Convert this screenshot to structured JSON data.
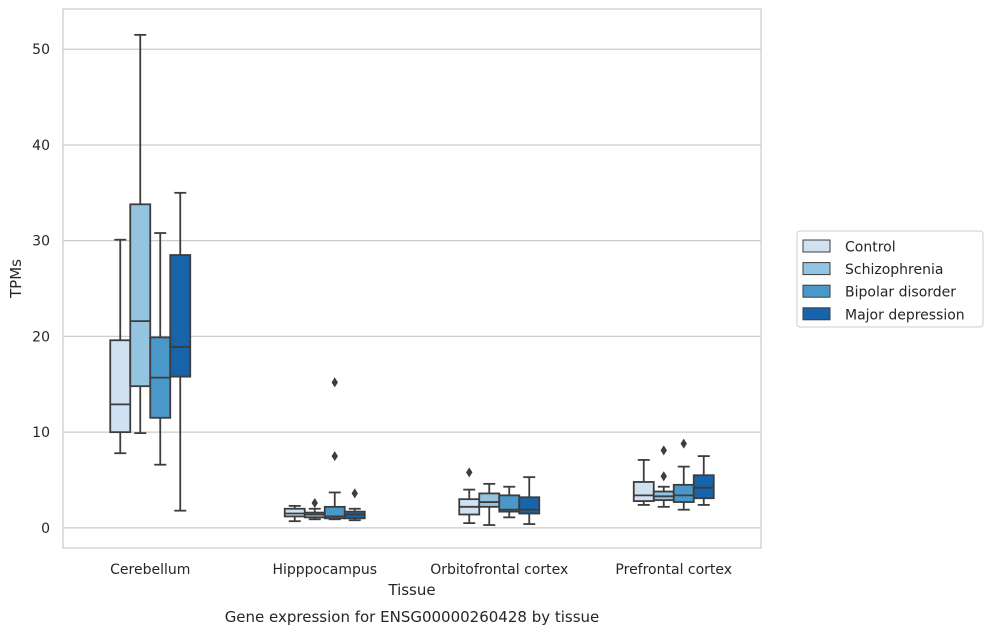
{
  "caption": "Gene expression for ENSG00000260428 by tissue",
  "chart_data": {
    "type": "box",
    "xlabel": "Tissue",
    "ylabel": "TPMs",
    "ylim": [
      -2.1,
      54.2
    ],
    "yticks": [
      0,
      10,
      20,
      30,
      40,
      50
    ],
    "grid": "horizontal",
    "legend_position": "right",
    "categories": [
      "Cerebellum",
      "Hipppocampus",
      "Orbitofrontal cortex",
      "Prefrontal cortex"
    ],
    "series": [
      {
        "name": "Control",
        "color": "#d0e1f2",
        "boxes": [
          {
            "whisker_low": 7.8,
            "q1": 10.0,
            "median": 12.9,
            "q3": 19.6,
            "whisker_high": 30.1,
            "outliers": []
          },
          {
            "whisker_low": 0.7,
            "q1": 1.2,
            "median": 1.5,
            "q3": 2.0,
            "whisker_high": 2.3,
            "outliers": []
          },
          {
            "whisker_low": 0.5,
            "q1": 1.4,
            "median": 2.2,
            "q3": 3.0,
            "whisker_high": 4.0,
            "outliers": [
              5.8
            ]
          },
          {
            "whisker_low": 2.4,
            "q1": 2.8,
            "median": 3.4,
            "q3": 4.8,
            "whisker_high": 7.1,
            "outliers": []
          }
        ]
      },
      {
        "name": "Schizophrenia",
        "color": "#94c4df",
        "boxes": [
          {
            "whisker_low": 9.9,
            "q1": 14.8,
            "median": 21.6,
            "q3": 33.8,
            "whisker_high": 51.5,
            "outliers": []
          },
          {
            "whisker_low": 0.9,
            "q1": 1.1,
            "median": 1.4,
            "q3": 1.6,
            "whisker_high": 2.0,
            "outliers": [
              2.6
            ]
          },
          {
            "whisker_low": 0.3,
            "q1": 2.2,
            "median": 2.7,
            "q3": 3.6,
            "whisker_high": 4.6,
            "outliers": []
          },
          {
            "whisker_low": 2.2,
            "q1": 2.9,
            "median": 3.3,
            "q3": 3.8,
            "whisker_high": 4.3,
            "outliers": [
              8.1,
              5.4
            ]
          }
        ]
      },
      {
        "name": "Bipolar disorder",
        "color": "#4a98c9",
        "boxes": [
          {
            "whisker_low": 6.6,
            "q1": 11.5,
            "median": 15.7,
            "q3": 19.9,
            "whisker_high": 30.8,
            "outliers": []
          },
          {
            "whisker_low": 0.9,
            "q1": 1.0,
            "median": 1.2,
            "q3": 2.2,
            "whisker_high": 3.7,
            "outliers": [
              15.2,
              7.5
            ]
          },
          {
            "whisker_low": 1.1,
            "q1": 1.7,
            "median": 1.9,
            "q3": 3.4,
            "whisker_high": 4.3,
            "outliers": []
          },
          {
            "whisker_low": 1.9,
            "q1": 2.7,
            "median": 3.4,
            "q3": 4.5,
            "whisker_high": 6.4,
            "outliers": [
              8.8
            ]
          }
        ]
      },
      {
        "name": "Major depression",
        "color": "#1764ab",
        "boxes": [
          {
            "whisker_low": 1.8,
            "q1": 15.8,
            "median": 18.9,
            "q3": 28.5,
            "whisker_high": 35.0,
            "outliers": []
          },
          {
            "whisker_low": 0.8,
            "q1": 1.0,
            "median": 1.4,
            "q3": 1.7,
            "whisker_high": 2.0,
            "outliers": [
              3.6
            ]
          },
          {
            "whisker_low": 0.4,
            "q1": 1.5,
            "median": 1.9,
            "q3": 3.2,
            "whisker_high": 5.3,
            "outliers": []
          },
          {
            "whisker_low": 2.4,
            "q1": 3.1,
            "median": 4.2,
            "q3": 5.5,
            "whisker_high": 7.5,
            "outliers": []
          }
        ]
      }
    ]
  }
}
